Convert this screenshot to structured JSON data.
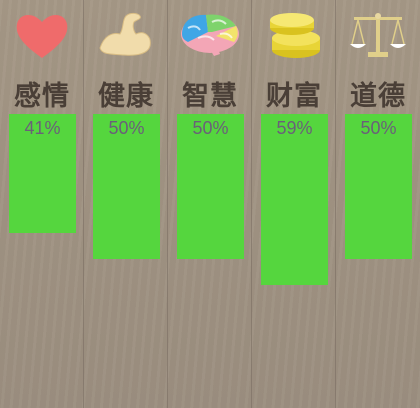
{
  "colors": {
    "bar": "#55d63e",
    "label": "#4a3f37",
    "percent": "#6a6079"
  },
  "attributes": [
    {
      "name": "感情",
      "percent_text": "41%",
      "value": 41,
      "icon": "heart-icon"
    },
    {
      "name": "健康",
      "percent_text": "50%",
      "value": 50,
      "icon": "flexed-arm-icon"
    },
    {
      "name": "智慧",
      "percent_text": "50%",
      "value": 50,
      "icon": "brain-icon"
    },
    {
      "name": "财富",
      "percent_text": "59%",
      "value": 59,
      "icon": "gold-coins-icon"
    },
    {
      "name": "道德",
      "percent_text": "50%",
      "value": 50,
      "icon": "balance-scale-icon"
    }
  ]
}
